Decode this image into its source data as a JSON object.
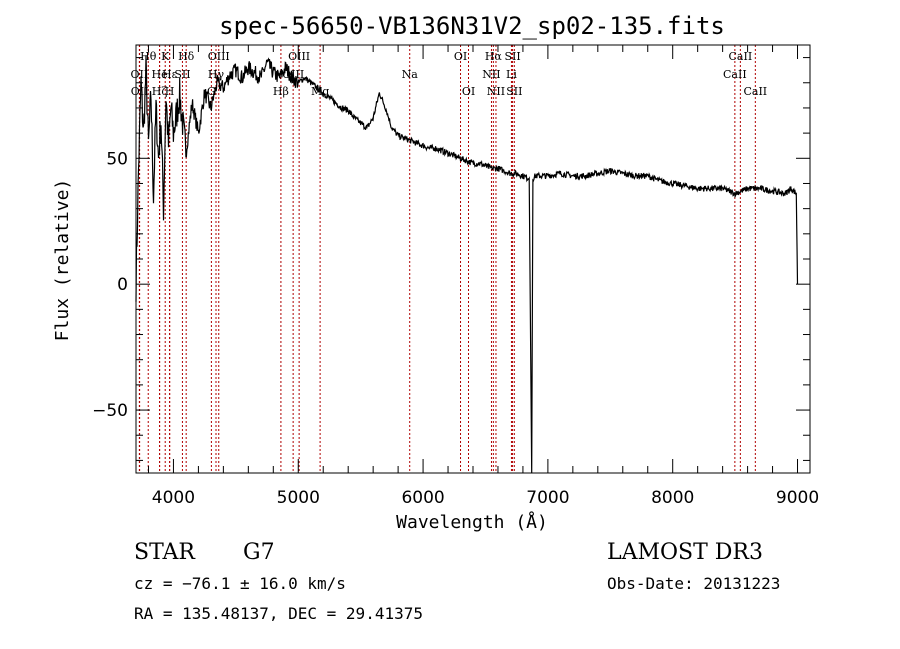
{
  "chart_data": {
    "type": "line",
    "title": "spec-56650-VB136N31V2_sp02-135.fits",
    "xlabel": "Wavelength (Å)",
    "ylabel": "Flux (relative)",
    "xlim": [
      3700,
      9100
    ],
    "ylim": [
      -75,
      95
    ],
    "xticks": [
      4000,
      5000,
      6000,
      7000,
      8000,
      9000
    ],
    "yticks": [
      -50,
      0,
      50
    ],
    "series": [
      {
        "name": "flux",
        "x": [
          3700,
          3720,
          3740,
          3760,
          3780,
          3800,
          3820,
          3840,
          3860,
          3880,
          3900,
          3920,
          3940,
          3960,
          3980,
          4000,
          4050,
          4100,
          4150,
          4200,
          4250,
          4300,
          4350,
          4400,
          4450,
          4500,
          4550,
          4600,
          4650,
          4700,
          4750,
          4800,
          4850,
          4900,
          4950,
          5000,
          5050,
          5100,
          5150,
          5200,
          5250,
          5300,
          5350,
          5400,
          5450,
          5500,
          5550,
          5600,
          5650,
          5700,
          5750,
          5800,
          5850,
          5900,
          5950,
          6000,
          6050,
          6100,
          6150,
          6200,
          6250,
          6300,
          6350,
          6400,
          6450,
          6500,
          6550,
          6600,
          6650,
          6700,
          6750,
          6800,
          6850,
          6870,
          6880,
          6900,
          6950,
          7000,
          7100,
          7200,
          7300,
          7400,
          7500,
          7600,
          7700,
          7800,
          7900,
          8000,
          8100,
          8200,
          8300,
          8400,
          8500,
          8550,
          8600,
          8700,
          8800,
          8900,
          8950,
          8990,
          9000
        ],
        "y": [
          0,
          45,
          80,
          60,
          85,
          55,
          75,
          35,
          70,
          50,
          65,
          30,
          75,
          55,
          70,
          60,
          75,
          52,
          72,
          60,
          76,
          70,
          80,
          78,
          83,
          85,
          82,
          86,
          84,
          82,
          88,
          84,
          82,
          86,
          82,
          80,
          82,
          80,
          78,
          76,
          74,
          72,
          70,
          69,
          66,
          64,
          62,
          66,
          76,
          70,
          62,
          59,
          58,
          57,
          56,
          55,
          54,
          54,
          53,
          52,
          51,
          50,
          49,
          48,
          48,
          47,
          46,
          46,
          45,
          44,
          44,
          43,
          42,
          -75,
          42,
          43,
          43,
          43,
          44,
          43,
          43,
          44,
          45,
          44,
          43,
          43,
          41,
          40,
          39,
          38,
          38,
          38,
          36,
          37,
          38,
          38,
          37,
          36,
          38,
          36,
          0
        ]
      }
    ],
    "spectral_lines": [
      {
        "label": "Hθ",
        "wavelength": 3798,
        "row": 1
      },
      {
        "label": "OII",
        "wavelength": 3727,
        "row": 2
      },
      {
        "label": "OII",
        "wavelength": 3729,
        "row": 3
      },
      {
        "label": "He",
        "wavelength": 3889,
        "row": 2
      },
      {
        "label": "K",
        "wavelength": 3934,
        "row": 1
      },
      {
        "label": "H",
        "wavelength": 3969,
        "row": 3
      },
      {
        "label": "Hε",
        "wavelength": 3970,
        "row": 2
      },
      {
        "label": "Hζ",
        "wavelength": 3889,
        "row": 3
      },
      {
        "label": "SII",
        "wavelength": 4072,
        "row": 2
      },
      {
        "label": "Hδ",
        "wavelength": 4102,
        "row": 1
      },
      {
        "label": "OIII",
        "wavelength": 4363,
        "row": 1
      },
      {
        "label": "Hγ",
        "wavelength": 4341,
        "row": 2
      },
      {
        "label": "G",
        "wavelength": 4304,
        "row": 3
      },
      {
        "label": "Hβ",
        "wavelength": 4861,
        "row": 3
      },
      {
        "label": "OIII",
        "wavelength": 4959,
        "row": 2
      },
      {
        "label": "OIII",
        "wavelength": 5007,
        "row": 1
      },
      {
        "label": "Mg",
        "wavelength": 5175,
        "row": 3
      },
      {
        "label": "Na",
        "wavelength": 5893,
        "row": 2
      },
      {
        "label": "OI",
        "wavelength": 6300,
        "row": 1
      },
      {
        "label": "OI",
        "wavelength": 6364,
        "row": 3
      },
      {
        "label": "Hα",
        "wavelength": 6563,
        "row": 1
      },
      {
        "label": "NII",
        "wavelength": 6548,
        "row": 2
      },
      {
        "label": "NII",
        "wavelength": 6584,
        "row": 3
      },
      {
        "label": "SII",
        "wavelength": 6717,
        "row": 1
      },
      {
        "label": "Li",
        "wavelength": 6708,
        "row": 2
      },
      {
        "label": "SII",
        "wavelength": 6731,
        "row": 3
      },
      {
        "label": "CaII",
        "wavelength": 8542,
        "row": 1
      },
      {
        "label": "CaII",
        "wavelength": 8498,
        "row": 2
      },
      {
        "label": "CaII",
        "wavelength": 8662,
        "row": 3
      }
    ],
    "colors": {
      "spectrum": "#000000",
      "line_markers": "#b00000",
      "axes": "#000000"
    }
  },
  "info": {
    "object_class": "STAR",
    "subclass": "G7",
    "survey": "LAMOST DR3",
    "cz": "cz = −76.1 ± 16.0 km/s",
    "obs_date": "Obs-Date: 20131223",
    "coords": "RA = 135.48137, DEC =  29.41375"
  }
}
